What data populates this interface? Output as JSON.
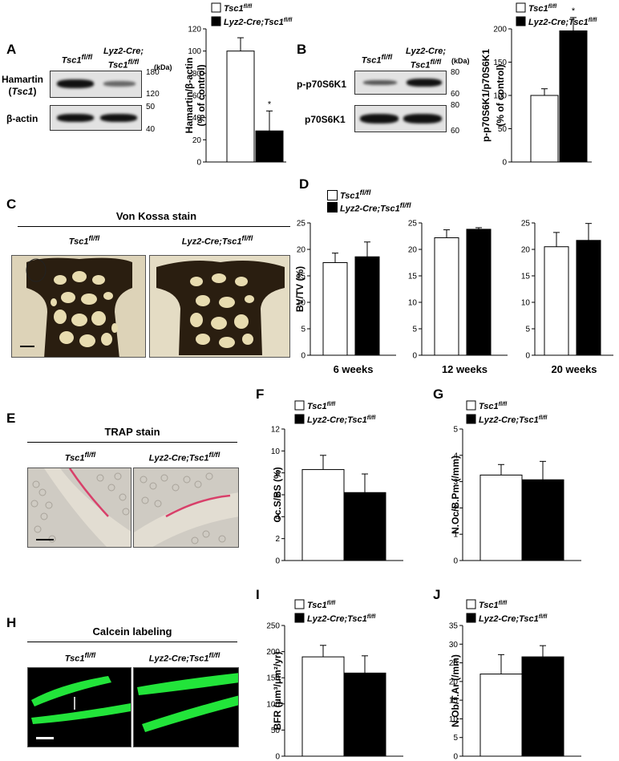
{
  "legend": {
    "ctrl": "Tsc1",
    "ctrl_sup": "fl/fl",
    "ko": "Lyz2-Cre;Tsc1",
    "ko_sup": "fl/fl"
  },
  "panelA": {
    "letter": "A",
    "lane1": "Tsc1",
    "lane1_sup": "fl/fl",
    "lane2_l1": "Lyz2-Cre;",
    "lane2_l2": "Tsc1",
    "lane2_sup": "fl/fl",
    "kda": "(kDa)",
    "hamartin": "Hamartin",
    "hamartin_gene": "Tsc1",
    "actin": "β-actin",
    "mw": [
      "180",
      "120",
      "50",
      "40"
    ]
  },
  "panelB": {
    "letter": "B",
    "lane1": "Tsc1",
    "lane1_sup": "fl/fl",
    "lane2_l1": "Lyz2-Cre;",
    "lane2_l2": "Tsc1",
    "lane2_sup": "fl/fl",
    "kda": "(kDa)",
    "row1": "p-p70S6K1",
    "row2": "p70S6K1",
    "mw": [
      "80",
      "60",
      "80",
      "60"
    ]
  },
  "panelC": {
    "letter": "C",
    "title": "Von Kossa stain",
    "g1": "Tsc1",
    "g1_sup": "fl/fl",
    "g2": "Lyz2-Cre;Tsc1",
    "g2_sup": "fl/fl"
  },
  "panelD": {
    "letter": "D"
  },
  "panelE": {
    "letter": "E",
    "title": "TRAP stain",
    "g1": "Tsc1",
    "g1_sup": "fl/fl",
    "g2": "Lyz2-Cre;Tsc1",
    "g2_sup": "fl/fl"
  },
  "panelF": {
    "letter": "F"
  },
  "panelG": {
    "letter": "G"
  },
  "panelH": {
    "letter": "H",
    "title": "Calcein labeling",
    "g1": "Tsc1",
    "g1_sup": "fl/fl",
    "g2": "Lyz2-Cre;Tsc1",
    "g2_sup": "fl/fl"
  },
  "panelI": {
    "letter": "I"
  },
  "panelJ": {
    "letter": "J"
  },
  "colors": {
    "ctrl": "#ffffff",
    "ko": "#000000",
    "calcein": "#22e43a"
  },
  "chart_data": [
    {
      "id": "A",
      "type": "bar",
      "ylabel_l1": "Hamartin/β-actin",
      "ylabel_l2": "(% of control)",
      "ylim": [
        0,
        120
      ],
      "yticks": [
        0,
        20,
        40,
        60,
        80,
        100,
        120
      ],
      "series": [
        {
          "name": "Tsc1fl/fl",
          "values": [
            100
          ],
          "err": [
            12
          ]
        },
        {
          "name": "Lyz2-Cre;Tsc1fl/fl",
          "values": [
            28
          ],
          "err": [
            18
          ]
        }
      ],
      "annotation": "*"
    },
    {
      "id": "B",
      "type": "bar",
      "ylabel_l1": "p-p70S6K1/p70S6K1",
      "ylabel_l2": "(% of control)",
      "ylim": [
        0,
        200
      ],
      "yticks": [
        0,
        50,
        100,
        150,
        200
      ],
      "series": [
        {
          "name": "Tsc1fl/fl",
          "values": [
            100
          ],
          "err": [
            10
          ]
        },
        {
          "name": "Lyz2-Cre;Tsc1fl/fl",
          "values": [
            197
          ],
          "err": [
            20
          ]
        }
      ],
      "annotation": "*"
    },
    {
      "id": "D1",
      "type": "bar",
      "ylabel": "BV/TV (%)",
      "xlabel": "6 weeks",
      "ylim": [
        0,
        25
      ],
      "yticks": [
        0,
        5,
        10,
        15,
        20,
        25
      ],
      "series": [
        {
          "name": "Tsc1fl/fl",
          "values": [
            17.5
          ],
          "err": [
            1.8
          ]
        },
        {
          "name": "Lyz2-Cre;Tsc1fl/fl",
          "values": [
            18.6
          ],
          "err": [
            2.8
          ]
        }
      ]
    },
    {
      "id": "D2",
      "type": "bar",
      "xlabel": "12 weeks",
      "ylim": [
        0,
        25
      ],
      "yticks": [
        0,
        5,
        10,
        15,
        20,
        25
      ],
      "series": [
        {
          "name": "Tsc1fl/fl",
          "values": [
            22.2
          ],
          "err": [
            1.5
          ]
        },
        {
          "name": "Lyz2-Cre;Tsc1fl/fl",
          "values": [
            23.8
          ],
          "err": [
            0.3
          ]
        }
      ]
    },
    {
      "id": "D3",
      "type": "bar",
      "xlabel": "20 weeks",
      "ylim": [
        0,
        25
      ],
      "yticks": [
        0,
        5,
        10,
        15,
        20,
        25
      ],
      "series": [
        {
          "name": "Tsc1fl/fl",
          "values": [
            20.5
          ],
          "err": [
            2.7
          ]
        },
        {
          "name": "Lyz2-Cre;Tsc1fl/fl",
          "values": [
            21.7
          ],
          "err": [
            3.2
          ]
        }
      ]
    },
    {
      "id": "F",
      "type": "bar",
      "ylabel": "Oc.S/BS (%)",
      "ylim": [
        0,
        12
      ],
      "yticks": [
        0,
        2,
        4,
        6,
        8,
        10,
        12
      ],
      "series": [
        {
          "name": "Tsc1fl/fl",
          "values": [
            8.3
          ],
          "err": [
            1.3
          ]
        },
        {
          "name": "Lyz2-Cre;Tsc1fl/fl",
          "values": [
            6.2
          ],
          "err": [
            1.7
          ]
        }
      ]
    },
    {
      "id": "G",
      "type": "bar",
      "ylabel": "N.Oc/B.Pm (/mm)",
      "ylim": [
        0,
        5
      ],
      "yticks": [
        0,
        1,
        2,
        3,
        4,
        5
      ],
      "series": [
        {
          "name": "Tsc1fl/fl",
          "values": [
            3.25
          ],
          "err": [
            0.4
          ]
        },
        {
          "name": "Lyz2-Cre;Tsc1fl/fl",
          "values": [
            3.07
          ],
          "err": [
            0.7
          ]
        }
      ]
    },
    {
      "id": "I",
      "type": "bar",
      "ylabel": "BFR (μm³/μm²/yr)",
      "ylim": [
        0,
        250
      ],
      "yticks": [
        0,
        50,
        100,
        150,
        200,
        250
      ],
      "series": [
        {
          "name": "Tsc1fl/fl",
          "values": [
            190
          ],
          "err": [
            22
          ]
        },
        {
          "name": "Lyz2-Cre;Tsc1fl/fl",
          "values": [
            159
          ],
          "err": [
            33
          ]
        }
      ]
    },
    {
      "id": "J",
      "type": "bar",
      "ylabel": "N.Ob/T.Ar (/mm)",
      "ylim": [
        0,
        35
      ],
      "yticks": [
        0,
        5,
        10,
        15,
        20,
        25,
        30,
        35
      ],
      "series": [
        {
          "name": "Tsc1fl/fl",
          "values": [
            22
          ],
          "err": [
            5.2
          ]
        },
        {
          "name": "Lyz2-Cre;Tsc1fl/fl",
          "values": [
            26.6
          ],
          "err": [
            3
          ]
        }
      ]
    }
  ]
}
